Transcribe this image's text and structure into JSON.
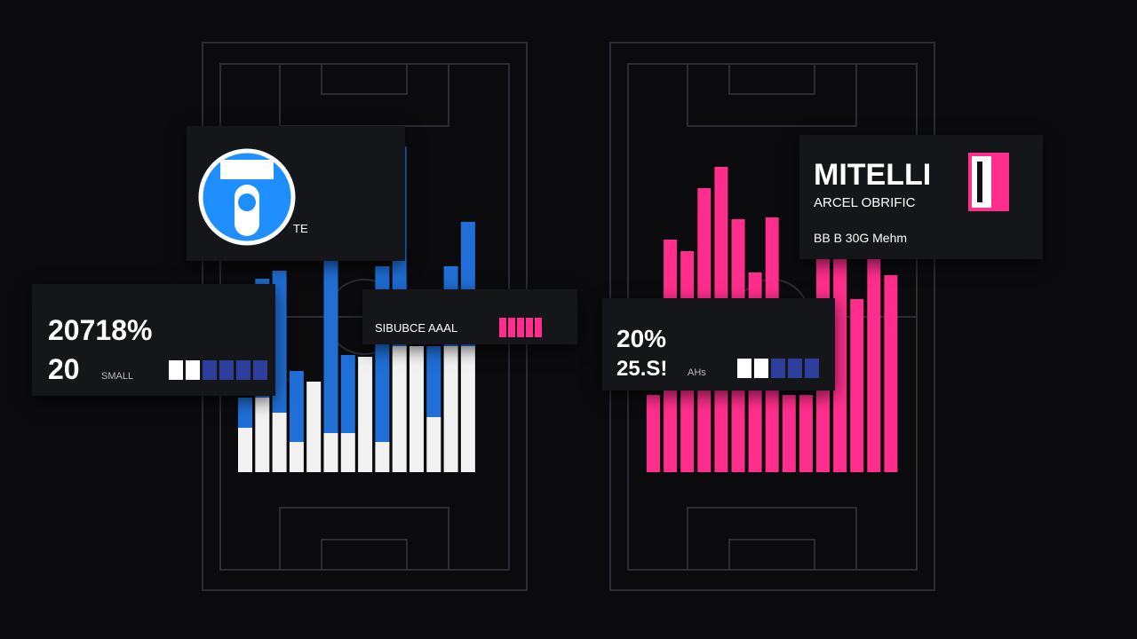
{
  "left_panel": {
    "badge_text": "TE",
    "stat_card": {
      "value1": "20718%",
      "value2": "20",
      "unit": "SMALL"
    },
    "label_card": {
      "text": "SIBUBCE AAAL"
    },
    "chart": {
      "type": "stacked-bar",
      "series": [
        {
          "color": "#f2f2f2",
          "values": [
            50,
            84,
            67,
            34,
            102,
            44,
            44,
            130,
            34,
            142,
            142,
            62,
            142,
            142
          ]
        },
        {
          "color": "#1f6fd6",
          "values": [
            34,
            134,
            160,
            80,
            0,
            195,
            88,
            0,
            198,
            225,
            0,
            80,
            90,
            140
          ]
        }
      ]
    }
  },
  "right_panel": {
    "team_card": {
      "title": "MITELLI",
      "subtitle": "ARCEL OBRIFIC",
      "meta": "BB B 30G Mehm"
    },
    "stat_card": {
      "value1": "20%",
      "value2": "25.S!",
      "unit": "AHs"
    },
    "chart": {
      "type": "bar",
      "color": "#ff2e8c",
      "values": [
        87,
        262,
        249,
        320,
        344,
        285,
        225,
        287,
        87,
        87,
        242,
        242,
        195,
        242,
        222
      ]
    }
  }
}
